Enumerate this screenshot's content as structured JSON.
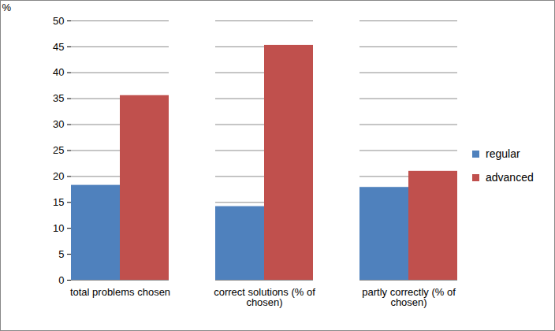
{
  "chart_data": {
    "type": "bar",
    "ylabel": "%",
    "categories": [
      "total problems chosen",
      "correct solutions (% of chosen)",
      "partly correctly (% of chosen)"
    ],
    "series": [
      {
        "name": "regular",
        "color": "#4f81bd",
        "values": [
          18.3,
          14.2,
          17.9
        ]
      },
      {
        "name": "advanced",
        "color": "#c0504d",
        "values": [
          35.6,
          45.3,
          21.0
        ]
      }
    ],
    "ylim": [
      0,
      50
    ],
    "yticks": [
      0,
      5,
      10,
      15,
      20,
      25,
      30,
      35,
      40,
      45,
      50
    ],
    "grid": true,
    "legend": "right"
  }
}
